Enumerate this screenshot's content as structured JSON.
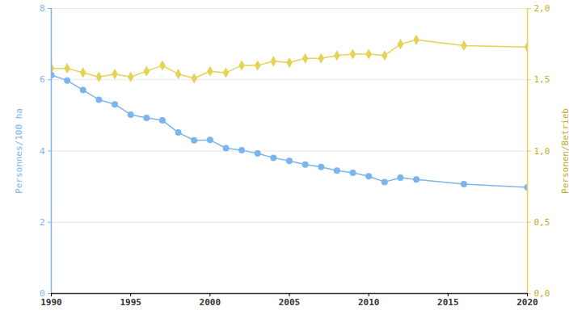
{
  "chart_data": {
    "type": "line",
    "x": [
      1990,
      1991,
      1992,
      1993,
      1994,
      1995,
      1996,
      1997,
      1998,
      1999,
      2000,
      2001,
      2002,
      2003,
      2004,
      2005,
      2006,
      2007,
      2008,
      2009,
      2010,
      2011,
      2012,
      2013,
      2016,
      2020
    ],
    "xlim": [
      1990,
      2020
    ],
    "xticks": [
      1990,
      1995,
      2000,
      2005,
      2010,
      2015,
      2020
    ],
    "ylim": [
      0,
      8
    ],
    "yticks": [
      0,
      2,
      4,
      6,
      8
    ],
    "ylabel": "Personnes/100 ha",
    "y2lim": [
      0,
      2
    ],
    "y2ticks": [
      {
        "value": 0,
        "label": "0,0"
      },
      {
        "value": 0.5,
        "label": "0,5"
      },
      {
        "value": 1,
        "label": "1,0"
      },
      {
        "value": 1.5,
        "label": "1,5"
      },
      {
        "value": 2,
        "label": "2,0"
      }
    ],
    "y2label": "Personen/Betrieb",
    "grid": true,
    "series": [
      {
        "name": "Personnes/100 ha",
        "color": "#7cb5ec",
        "marker": "circle",
        "values": [
          6.13,
          5.98,
          5.71,
          5.44,
          5.31,
          5.02,
          4.93,
          4.86,
          4.52,
          4.3,
          4.31,
          4.08,
          4.02,
          3.93,
          3.81,
          3.72,
          3.62,
          3.55,
          3.45,
          3.39,
          3.29,
          3.13,
          3.25,
          3.2,
          3.07,
          2.98
        ]
      },
      {
        "name": "Personen/Betrieb",
        "color": "#e4d354",
        "marker": "diamond",
        "axis": "y2",
        "values": [
          1.58,
          1.58,
          1.55,
          1.52,
          1.54,
          1.52,
          1.56,
          1.6,
          1.54,
          1.51,
          1.56,
          1.55,
          1.6,
          1.6,
          1.63,
          1.62,
          1.65,
          1.65,
          1.67,
          1.68,
          1.68,
          1.67,
          1.75,
          1.78,
          1.74,
          1.73
        ]
      }
    ]
  }
}
